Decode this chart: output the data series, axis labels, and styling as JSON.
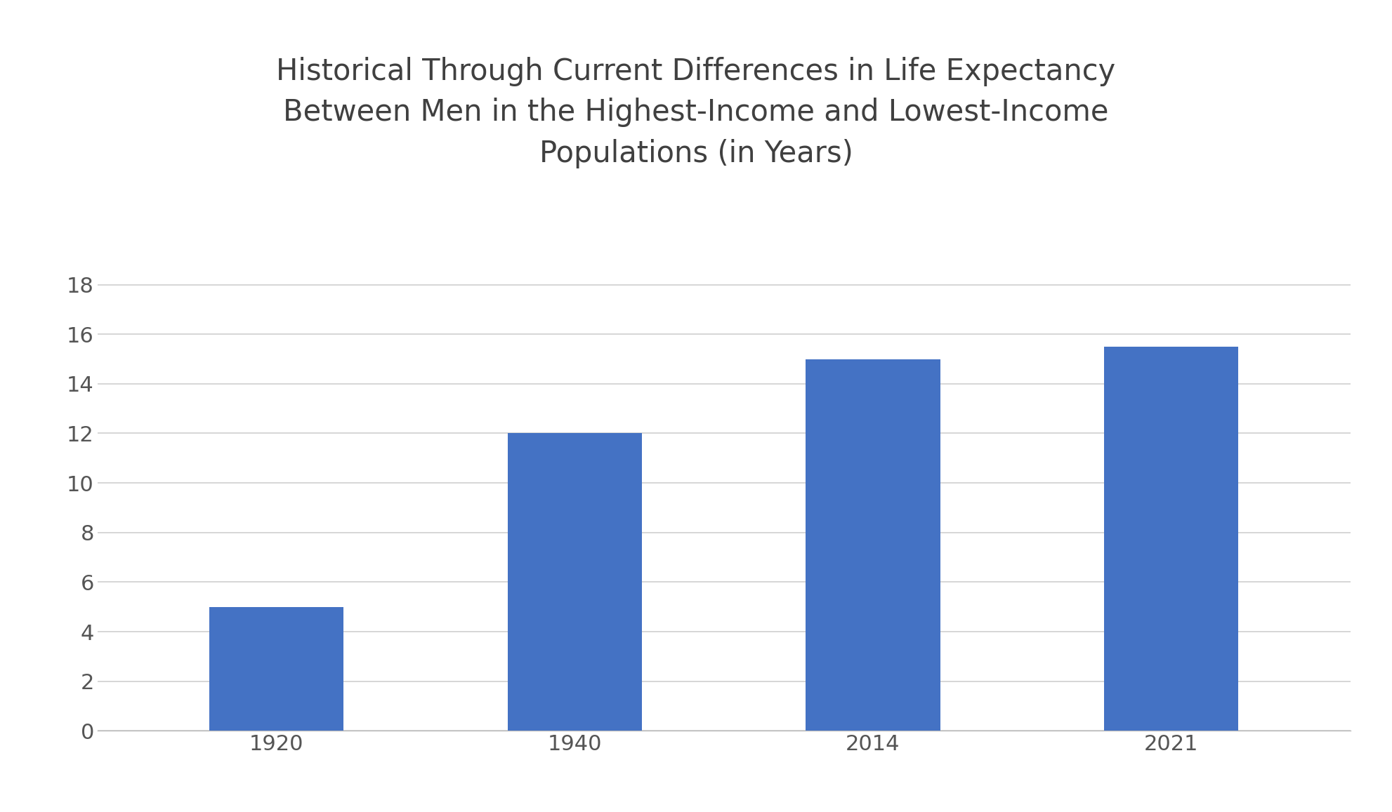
{
  "categories": [
    "1920",
    "1940",
    "2014",
    "2021"
  ],
  "values": [
    5.0,
    12.0,
    15.0,
    15.5
  ],
  "bar_color": "#4472C4",
  "title_lines": [
    "Historical Through Current Differences in Life Expectancy",
    "Between Men in the Highest-Income and Lowest-Income",
    "Populations (in Years)"
  ],
  "ylim": [
    0,
    19
  ],
  "yticks": [
    0,
    2,
    4,
    6,
    8,
    10,
    12,
    14,
    16,
    18
  ],
  "title_fontsize": 30,
  "tick_fontsize": 22,
  "background_color": "#ffffff",
  "grid_color": "#d0d0d0",
  "bar_width": 0.45
}
